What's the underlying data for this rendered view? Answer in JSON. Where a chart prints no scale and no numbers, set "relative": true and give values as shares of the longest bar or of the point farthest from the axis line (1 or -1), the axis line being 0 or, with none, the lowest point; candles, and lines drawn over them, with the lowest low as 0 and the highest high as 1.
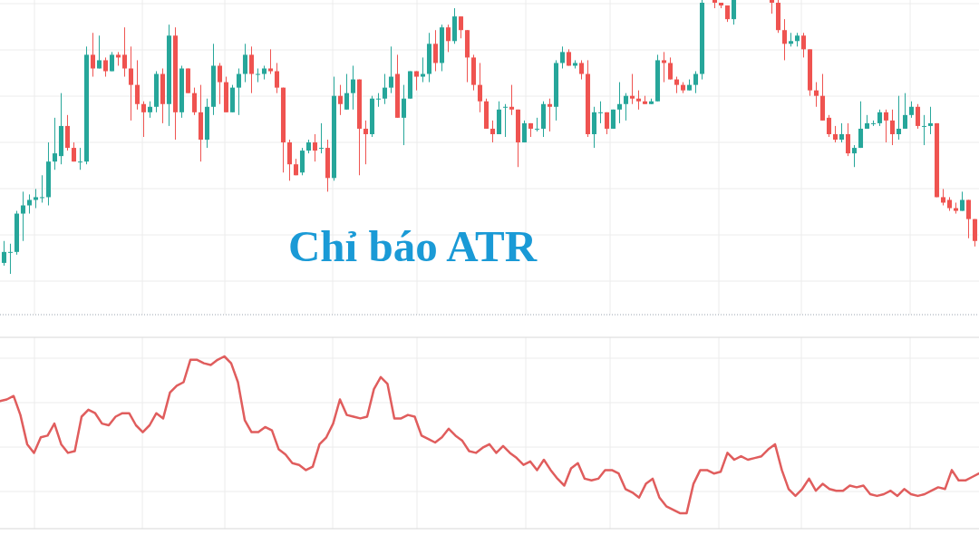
{
  "chart_data": [
    {
      "type": "candlestick",
      "title": "Chỉ báo ATR",
      "relative": true,
      "grid": true,
      "categories": [
        null,
        null,
        null,
        null,
        null,
        null,
        null,
        null,
        null,
        null,
        null,
        null,
        null,
        null,
        null,
        null,
        null,
        null,
        null,
        null,
        null,
        null,
        null,
        null,
        null,
        null,
        null,
        null,
        null,
        null,
        null,
        null,
        null,
        null,
        null,
        null,
        null,
        null,
        null,
        null,
        null,
        null,
        null,
        null,
        null,
        null,
        null,
        null,
        null,
        null,
        null,
        null,
        null,
        null,
        null,
        null,
        null,
        null,
        null,
        null,
        null,
        null,
        null,
        null,
        null,
        null,
        null,
        null,
        null,
        null,
        null,
        null,
        null,
        null,
        null,
        null,
        null,
        null,
        null,
        null,
        null,
        null,
        null,
        null,
        null,
        null,
        null,
        null,
        null,
        null,
        null,
        null,
        null,
        null,
        null,
        null,
        null,
        null,
        null,
        null,
        null,
        null,
        null,
        null,
        null,
        null,
        null,
        null,
        null,
        null,
        null,
        null,
        null,
        null,
        null,
        null,
        null,
        null,
        null,
        null,
        null,
        null,
        null,
        null,
        null,
        null,
        null,
        null,
        null,
        null,
        null,
        null,
        null,
        null,
        null,
        null,
        null,
        null,
        null,
        null,
        null,
        null,
        null,
        null,
        null,
        null,
        null,
        null,
        null,
        null,
        null,
        null,
        null,
        null
      ],
      "ohlc": [
        [
          0.04,
          0.12,
          0.03,
          0.08
        ],
        [
          0.08,
          0.11,
          0,
          0.08
        ],
        [
          0.08,
          0.23,
          0.07,
          0.22
        ],
        [
          0.22,
          0.3,
          0.12,
          0.25
        ],
        [
          0.25,
          0.29,
          0.22,
          0.27
        ],
        [
          0.27,
          0.31,
          0.24,
          0.28
        ],
        [
          0.28,
          0.36,
          0.26,
          0.28
        ],
        [
          0.28,
          0.48,
          0.25,
          0.41
        ],
        [
          0.41,
          0.57,
          0.38,
          0.44
        ],
        [
          0.43,
          0.66,
          0.4,
          0.54
        ],
        [
          0.54,
          0.58,
          0.45,
          0.46
        ],
        [
          0.46,
          0.48,
          0.41,
          0.41
        ],
        [
          0.41,
          0.46,
          0.38,
          0.41
        ],
        [
          0.41,
          0.83,
          0.4,
          0.8
        ],
        [
          0.8,
          0.88,
          0.72,
          0.75
        ],
        [
          0.75,
          0.87,
          0.75,
          0.78
        ],
        [
          0.78,
          0.79,
          0.72,
          0.74
        ],
        [
          0.74,
          0.81,
          0.74,
          0.8
        ],
        [
          0.8,
          0.81,
          0.76,
          0.79
        ],
        [
          0.8,
          0.9,
          0.72,
          0.75
        ],
        [
          0.75,
          0.83,
          0.56,
          0.69
        ],
        [
          0.69,
          0.78,
          0.6,
          0.62
        ],
        [
          0.62,
          0.63,
          0.5,
          0.59
        ],
        [
          0.59,
          0.63,
          0.57,
          0.61
        ],
        [
          0.61,
          0.74,
          0.59,
          0.73
        ],
        [
          0.73,
          0.75,
          0.55,
          0.62
        ],
        [
          0.62,
          0.91,
          0.54,
          0.87
        ],
        [
          0.87,
          0.9,
          0.49,
          0.59
        ],
        [
          0.59,
          0.76,
          0.57,
          0.75
        ],
        [
          0.75,
          0.75,
          0.66,
          0.66
        ],
        [
          0.66,
          0.68,
          0.58,
          0.59
        ],
        [
          0.59,
          0.69,
          0.41,
          0.49
        ],
        [
          0.49,
          0.64,
          0.46,
          0.61
        ],
        [
          0.61,
          0.84,
          0.58,
          0.76
        ],
        [
          0.76,
          0.77,
          0.62,
          0.7
        ],
        [
          0.7,
          0.72,
          0.59,
          0.59
        ],
        [
          0.59,
          0.69,
          0.59,
          0.68
        ],
        [
          0.68,
          0.75,
          0.58,
          0.73
        ],
        [
          0.73,
          0.84,
          0.7,
          0.8
        ],
        [
          0.8,
          0.83,
          0.66,
          0.73
        ],
        [
          0.73,
          0.75,
          0.7,
          0.73
        ],
        [
          0.73,
          0.76,
          0.71,
          0.75
        ],
        [
          0.75,
          0.82,
          0.73,
          0.74
        ],
        [
          0.74,
          0.77,
          0.66,
          0.68
        ],
        [
          0.68,
          0.68,
          0.37,
          0.48
        ],
        [
          0.48,
          0.49,
          0.34,
          0.4
        ],
        [
          0.4,
          0.42,
          0.36,
          0.36
        ],
        [
          0.37,
          0.46,
          0.36,
          0.45
        ],
        [
          0.45,
          0.49,
          0.44,
          0.48
        ],
        [
          0.48,
          0.51,
          0.41,
          0.45
        ],
        [
          0.46,
          0.55,
          0.44,
          0.46
        ],
        [
          0.46,
          0.49,
          0.3,
          0.35
        ],
        [
          0.35,
          0.72,
          0.34,
          0.65
        ],
        [
          0.65,
          0.69,
          0.58,
          0.62
        ],
        [
          0.6,
          0.73,
          0.6,
          0.66
        ],
        [
          0.66,
          0.76,
          0.6,
          0.71
        ],
        [
          0.71,
          0.71,
          0.36,
          0.53
        ],
        [
          0.53,
          0.56,
          0.4,
          0.51
        ],
        [
          0.51,
          0.65,
          0.5,
          0.64
        ],
        [
          0.64,
          0.66,
          0.61,
          0.64
        ],
        [
          0.64,
          0.73,
          0.62,
          0.68
        ],
        [
          0.68,
          0.83,
          0.66,
          0.72
        ],
        [
          0.73,
          0.8,
          0.57,
          0.57
        ],
        [
          0.57,
          0.69,
          0.47,
          0.64
        ],
        [
          0.64,
          0.74,
          0.64,
          0.74
        ],
        [
          0.74,
          0.74,
          0.67,
          0.72
        ],
        [
          0.72,
          0.79,
          0.7,
          0.73
        ],
        [
          0.73,
          0.88,
          0.7,
          0.84
        ],
        [
          0.84,
          0.89,
          0.74,
          0.77
        ],
        [
          0.77,
          0.91,
          0.74,
          0.9
        ],
        [
          0.9,
          0.91,
          0.81,
          0.85
        ],
        [
          0.85,
          0.97,
          0.84,
          0.94
        ],
        [
          0.94,
          0.94,
          0.86,
          0.89
        ],
        [
          0.89,
          0.89,
          0.7,
          0.79
        ],
        [
          0.79,
          0.8,
          0.67,
          0.69
        ],
        [
          0.69,
          0.77,
          0.59,
          0.63
        ],
        [
          0.63,
          0.64,
          0.53,
          0.53
        ],
        [
          0.53,
          0.56,
          0.48,
          0.51
        ],
        [
          0.51,
          0.63,
          0.51,
          0.6
        ],
        [
          0.61,
          0.62,
          0.5,
          0.61
        ],
        [
          0.61,
          0.69,
          0.58,
          0.6
        ],
        [
          0.6,
          0.6,
          0.39,
          0.48
        ],
        [
          0.48,
          0.56,
          0.48,
          0.55
        ],
        [
          0.55,
          0.55,
          0.5,
          0.53
        ],
        [
          0.53,
          0.57,
          0.52,
          0.53
        ],
        [
          0.53,
          0.63,
          0.5,
          0.62
        ],
        [
          0.62,
          0.64,
          0.52,
          0.61
        ],
        [
          0.61,
          0.78,
          0.56,
          0.77
        ],
        [
          0.77,
          0.83,
          0.75,
          0.81
        ],
        [
          0.81,
          0.82,
          0.76,
          0.76
        ],
        [
          0.76,
          0.78,
          0.75,
          0.77
        ],
        [
          0.77,
          0.78,
          0.71,
          0.73
        ],
        [
          0.73,
          0.78,
          0.5,
          0.51
        ],
        [
          0.51,
          0.61,
          0.46,
          0.59
        ],
        [
          0.59,
          0.63,
          0.55,
          0.59
        ],
        [
          0.59,
          0.59,
          0.51,
          0.53
        ],
        [
          0.53,
          0.6,
          0.53,
          0.6
        ],
        [
          0.6,
          0.7,
          0.55,
          0.62
        ],
        [
          0.62,
          0.66,
          0.56,
          0.65
        ],
        [
          0.65,
          0.73,
          0.62,
          0.64
        ],
        [
          0.64,
          0.67,
          0.6,
          0.63
        ],
        [
          0.63,
          0.65,
          0.62,
          0.62
        ],
        [
          0.62,
          0.64,
          0.62,
          0.63
        ],
        [
          0.63,
          0.8,
          0.63,
          0.78
        ],
        [
          0.78,
          0.81,
          0.7,
          0.77
        ],
        [
          0.77,
          0.79,
          0.71,
          0.71
        ],
        [
          0.71,
          0.72,
          0.66,
          0.69
        ],
        [
          0.69,
          0.7,
          0.66,
          0.67
        ],
        [
          0.67,
          0.71,
          0.67,
          0.69
        ],
        [
          0.69,
          0.74,
          0.66,
          0.73
        ],
        [
          0.73,
          1,
          0.71,
          0.99
        ],
        null,
        [
          1,
          1,
          0.97,
          0.99
        ],
        [
          0.99,
          0.99,
          0.97,
          0.98
        ],
        [
          0.98,
          0.98,
          0.92,
          0.93
        ],
        [
          0.93,
          1,
          0.91,
          1
        ],
        null,
        null,
        null,
        null,
        null,
        [
          1,
          1,
          0.95,
          0.99
        ],
        [
          0.99,
          1,
          0.88,
          0.89
        ],
        [
          0.89,
          0.93,
          0.78,
          0.84
        ],
        [
          0.84,
          0.88,
          0.83,
          0.85
        ],
        [
          0.85,
          0.88,
          0.83,
          0.87
        ],
        [
          0.87,
          0.88,
          0.79,
          0.82
        ],
        [
          0.82,
          0.82,
          0.65,
          0.67
        ],
        [
          0.67,
          0.7,
          0.61,
          0.65
        ],
        [
          0.65,
          0.73,
          0.56,
          0.56
        ],
        [
          0.57,
          0.58,
          0.5,
          0.51
        ],
        [
          0.51,
          0.54,
          0.48,
          0.49
        ],
        [
          0.49,
          0.55,
          0.48,
          0.51
        ],
        [
          0.51,
          0.55,
          0.43,
          0.44
        ],
        [
          0.44,
          0.47,
          0.39,
          0.46
        ],
        [
          0.46,
          0.63,
          0.46,
          0.53
        ],
        [
          0.53,
          0.58,
          0.53,
          0.55
        ],
        [
          0.55,
          0.56,
          0.54,
          0.55
        ],
        [
          0.55,
          0.6,
          0.54,
          0.59
        ],
        [
          0.59,
          0.6,
          0.48,
          0.56
        ],
        [
          0.56,
          0.6,
          0.47,
          0.51
        ],
        [
          0.51,
          0.65,
          0.49,
          0.53
        ],
        [
          0.53,
          0.66,
          0.53,
          0.58
        ],
        [
          0.58,
          0.63,
          0.57,
          0.61
        ],
        [
          0.61,
          0.62,
          0.53,
          0.54
        ],
        [
          0.54,
          0.58,
          0.47,
          0.54
        ],
        [
          0.54,
          0.61,
          0.51,
          0.55
        ],
        [
          0.55,
          0.55,
          0.28,
          0.28
        ],
        [
          0.28,
          0.31,
          0.25,
          0.26
        ],
        [
          0.27,
          0.28,
          0.23,
          0.24
        ],
        [
          0.24,
          0.26,
          0.22,
          0.23
        ],
        [
          0.23,
          0.3,
          0.23,
          0.27
        ],
        [
          0.27,
          0.27,
          0.13,
          0.2
        ],
        [
          0.2,
          0.2,
          0.1,
          0.12
        ]
      ]
    },
    {
      "type": "line",
      "relative": true,
      "grid": true,
      "color": "#e05d5d",
      "categories": [
        null,
        null,
        null,
        null,
        null,
        null,
        null,
        null,
        null,
        null,
        null,
        null,
        null,
        null,
        null,
        null,
        null,
        null,
        null,
        null,
        null,
        null,
        null,
        null,
        null,
        null,
        null,
        null,
        null,
        null,
        null,
        null,
        null,
        null,
        null,
        null,
        null,
        null,
        null,
        null,
        null,
        null,
        null,
        null,
        null,
        null,
        null,
        null,
        null,
        null,
        null,
        null,
        null,
        null,
        null,
        null,
        null,
        null,
        null,
        null,
        null,
        null,
        null,
        null,
        null,
        null,
        null,
        null,
        null,
        null,
        null,
        null,
        null,
        null,
        null,
        null,
        null,
        null,
        null,
        null,
        null,
        null,
        null,
        null,
        null,
        null,
        null,
        null,
        null,
        null,
        null,
        null,
        null,
        null,
        null,
        null,
        null,
        null,
        null,
        null,
        null,
        null,
        null,
        null,
        null,
        null,
        null,
        null,
        null,
        null,
        null,
        null,
        null,
        null,
        null,
        null,
        null,
        null,
        null,
        null,
        null,
        null,
        null,
        null,
        null,
        null,
        null,
        null,
        null,
        null,
        null,
        null,
        null,
        null,
        null,
        null,
        null,
        null,
        null,
        null,
        null,
        null,
        null,
        null,
        null
      ],
      "values": [
        0.74,
        0.75,
        0.77,
        0.66,
        0.49,
        0.44,
        0.53,
        0.54,
        0.61,
        0.49,
        0.44,
        0.45,
        0.65,
        0.69,
        0.67,
        0.61,
        0.6,
        0.65,
        0.67,
        0.67,
        0.6,
        0.56,
        0.6,
        0.67,
        0.64,
        0.79,
        0.83,
        0.85,
        0.98,
        0.98,
        0.96,
        0.95,
        0.98,
        1,
        0.96,
        0.85,
        0.63,
        0.56,
        0.56,
        0.59,
        0.57,
        0.46,
        0.43,
        0.38,
        0.37,
        0.34,
        0.36,
        0.49,
        0.53,
        0.61,
        0.75,
        0.66,
        0.65,
        0.64,
        0.65,
        0.81,
        0.88,
        0.84,
        0.64,
        0.64,
        0.66,
        0.65,
        0.54,
        0.52,
        0.5,
        0.53,
        0.58,
        0.54,
        0.51,
        0.45,
        0.44,
        0.47,
        0.49,
        0.44,
        0.48,
        0.44,
        0.41,
        0.37,
        0.39,
        0.34,
        0.4,
        0.34,
        0.29,
        0.25,
        0.35,
        0.38,
        0.29,
        0.28,
        0.29,
        0.34,
        0.34,
        0.32,
        0.23,
        0.21,
        0.18,
        0.26,
        0.29,
        0.18,
        0.13,
        0.11,
        0.09,
        0.09,
        0.26,
        0.34,
        0.34,
        0.32,
        0.33,
        0.44,
        0.4,
        0.42,
        0.4,
        0.41,
        0.42,
        0.46,
        0.49,
        0.34,
        0.23,
        0.19,
        0.23,
        0.29,
        0.22,
        0.26,
        0.23,
        0.22,
        0.22,
        0.25,
        0.24,
        0.25,
        0.2,
        0.19,
        0.2,
        0.22,
        0.19,
        0.23,
        0.2,
        0.19,
        0.2,
        0.22,
        0.24,
        0.23,
        0.34,
        0.28,
        0.28,
        0.3,
        0.32
      ]
    }
  ]
}
